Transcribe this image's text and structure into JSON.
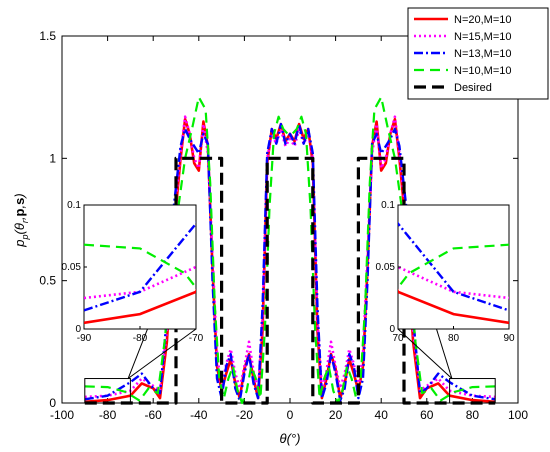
{
  "chart_data": {
    "type": "line",
    "xlabel": "θ(°)",
    "ylabel_parts": [
      "p",
      "p",
      "(θ",
      "r",
      ",",
      "p",
      ",",
      "s",
      ")"
    ],
    "xlim": [
      -100,
      100
    ],
    "ylim": [
      0,
      1.5
    ],
    "xticks": [
      -100,
      -80,
      -60,
      -40,
      -20,
      0,
      20,
      40,
      60,
      80,
      100
    ],
    "yticks": [
      0,
      0.5,
      1,
      1.5
    ],
    "grid": false,
    "legend_position": "top-right",
    "series": [
      {
        "name": "N=20,M=10",
        "color": "#ff0000",
        "dash": "solid",
        "x": [
          -90,
          -80,
          -70,
          -65,
          -60,
          -57,
          -54,
          -51,
          -48,
          -46,
          -44,
          -42,
          -40,
          -38,
          -36,
          -34,
          -32,
          -30,
          -28,
          -26,
          -24,
          -22,
          -20,
          -18,
          -16,
          -14,
          -12,
          -10,
          -8,
          -6,
          -4,
          -2,
          0,
          2,
          4,
          6,
          8,
          10,
          12,
          14,
          16,
          18,
          20,
          22,
          24,
          26,
          28,
          30,
          32,
          34,
          36,
          38,
          40,
          42,
          44,
          46,
          48,
          51,
          54,
          57,
          60,
          65,
          70,
          80,
          90
        ],
        "y": [
          0.005,
          0.012,
          0.03,
          0.08,
          0.06,
          0.02,
          0.25,
          0.7,
          1.0,
          1.16,
          1.1,
          0.98,
          0.95,
          1.15,
          1.05,
          0.55,
          0.15,
          0.05,
          0.12,
          0.18,
          0.08,
          0.02,
          0.14,
          0.2,
          0.1,
          0.02,
          0.3,
          0.98,
          1.12,
          1.08,
          1.14,
          1.07,
          1.1,
          1.07,
          1.14,
          1.08,
          1.12,
          0.98,
          0.3,
          0.02,
          0.1,
          0.2,
          0.14,
          0.02,
          0.08,
          0.18,
          0.12,
          0.05,
          0.15,
          0.55,
          1.05,
          1.15,
          0.95,
          0.98,
          1.1,
          1.16,
          1.0,
          0.7,
          0.25,
          0.02,
          0.06,
          0.08,
          0.03,
          0.012,
          0.005
        ]
      },
      {
        "name": "N=15,M=10",
        "color": "#ff00ff",
        "dash": "dotted",
        "x": [
          -90,
          -80,
          -70,
          -65,
          -60,
          -57,
          -54,
          -51,
          -48,
          -46,
          -44,
          -42,
          -40,
          -38,
          -36,
          -34,
          -32,
          -30,
          -28,
          -26,
          -24,
          -22,
          -20,
          -18,
          -16,
          -14,
          -12,
          -10,
          -8,
          -6,
          -4,
          -2,
          0,
          2,
          4,
          6,
          8,
          10,
          12,
          14,
          16,
          18,
          20,
          22,
          24,
          26,
          28,
          30,
          32,
          34,
          36,
          38,
          40,
          42,
          44,
          46,
          48,
          51,
          54,
          57,
          60,
          65,
          70,
          80,
          90
        ],
        "y": [
          0.025,
          0.03,
          0.05,
          0.1,
          0.07,
          0.05,
          0.3,
          0.75,
          1.02,
          1.17,
          1.1,
          1.0,
          0.96,
          1.14,
          1.02,
          0.6,
          0.2,
          0.06,
          0.16,
          0.22,
          0.12,
          0.06,
          0.15,
          0.25,
          0.13,
          0.05,
          0.35,
          1.0,
          1.1,
          1.06,
          1.12,
          1.05,
          1.08,
          1.05,
          1.12,
          1.06,
          1.1,
          1.0,
          0.35,
          0.05,
          0.13,
          0.25,
          0.15,
          0.06,
          0.12,
          0.22,
          0.16,
          0.06,
          0.2,
          0.6,
          1.02,
          1.14,
          0.96,
          1.0,
          1.1,
          1.17,
          1.02,
          0.75,
          0.3,
          0.05,
          0.07,
          0.1,
          0.05,
          0.03,
          0.025
        ]
      },
      {
        "name": "N=13,M=10",
        "color": "#0000ff",
        "dash": "dashdot",
        "x": [
          -90,
          -80,
          -70,
          -65,
          -60,
          -57,
          -54,
          -51,
          -48,
          -46,
          -44,
          -42,
          -40,
          -38,
          -36,
          -34,
          -32,
          -30,
          -28,
          -26,
          -24,
          -22,
          -20,
          -18,
          -16,
          -14,
          -12,
          -10,
          -8,
          -6,
          -4,
          -2,
          0,
          2,
          4,
          6,
          8,
          10,
          12,
          14,
          16,
          18,
          20,
          22,
          24,
          26,
          28,
          30,
          32,
          34,
          36,
          38,
          40,
          42,
          44,
          46,
          48,
          51,
          54,
          57,
          60,
          65,
          70,
          80,
          90
        ],
        "y": [
          0.015,
          0.03,
          0.085,
          0.12,
          0.06,
          0.04,
          0.35,
          0.8,
          1.05,
          1.12,
          1.08,
          1.05,
          1.02,
          1.1,
          1.06,
          0.5,
          0.1,
          0.02,
          0.15,
          0.2,
          0.06,
          0.01,
          0.12,
          0.2,
          0.08,
          0.02,
          0.4,
          1.02,
          1.12,
          1.06,
          1.14,
          1.06,
          1.1,
          1.06,
          1.14,
          1.06,
          1.12,
          1.02,
          0.4,
          0.02,
          0.08,
          0.2,
          0.12,
          0.01,
          0.06,
          0.2,
          0.15,
          0.02,
          0.1,
          0.5,
          1.06,
          1.1,
          1.02,
          1.05,
          1.08,
          1.12,
          1.05,
          0.8,
          0.35,
          0.04,
          0.06,
          0.12,
          0.085,
          0.03,
          0.015
        ]
      },
      {
        "name": "N=10,M=10",
        "color": "#00ee00",
        "dash": "dashed",
        "x": [
          -90,
          -80,
          -72,
          -66,
          -62,
          -58,
          -55,
          -52,
          -49,
          -46,
          -43,
          -40,
          -37,
          -35,
          -33,
          -31,
          -29,
          -27,
          -25,
          -23,
          -21,
          -19,
          -17,
          -15,
          -13,
          -11,
          -9,
          -7,
          -5,
          -3,
          -1,
          0,
          1,
          3,
          5,
          7,
          9,
          11,
          13,
          15,
          17,
          19,
          21,
          23,
          25,
          27,
          29,
          31,
          33,
          35,
          37,
          40,
          43,
          46,
          49,
          52,
          55,
          58,
          62,
          66,
          72,
          80,
          90
        ],
        "y": [
          0.068,
          0.065,
          0.045,
          0.01,
          0.06,
          0.04,
          0.25,
          0.55,
          0.8,
          1.0,
          1.12,
          1.25,
          1.2,
          0.9,
          0.4,
          0.1,
          0.02,
          0.1,
          0.15,
          0.05,
          0.0,
          0.05,
          0.15,
          0.1,
          0.02,
          0.3,
          0.8,
          1.1,
          1.17,
          1.12,
          1.1,
          1.1,
          1.1,
          1.12,
          1.17,
          1.1,
          0.8,
          0.3,
          0.02,
          0.1,
          0.15,
          0.05,
          0.0,
          0.05,
          0.15,
          0.1,
          0.02,
          0.1,
          0.4,
          0.9,
          1.2,
          1.25,
          1.12,
          1.0,
          0.8,
          0.55,
          0.25,
          0.04,
          0.06,
          0.01,
          0.045,
          0.065,
          0.068
        ]
      },
      {
        "name": "Desired",
        "color": "#000000",
        "dash": "bigdash",
        "x": [
          -90,
          -50,
          -50,
          -30,
          -30,
          -10,
          -10,
          10,
          10,
          30,
          30,
          50,
          50,
          90
        ],
        "y": [
          0,
          0,
          1,
          1,
          0,
          0,
          1,
          1,
          0,
          0,
          1,
          1,
          0,
          0
        ]
      }
    ],
    "insets": [
      {
        "xlim": [
          -90,
          -70
        ],
        "ylim": [
          0,
          0.1
        ],
        "xticks": [
          -90,
          -80,
          -70
        ],
        "yticks": [
          0,
          0.05,
          0.1
        ],
        "source_region": "left"
      },
      {
        "xlim": [
          70,
          90
        ],
        "ylim": [
          0,
          0.1
        ],
        "xticks": [
          70,
          80,
          90
        ],
        "yticks": [
          0,
          0.05,
          0.1
        ],
        "source_region": "right"
      }
    ]
  }
}
